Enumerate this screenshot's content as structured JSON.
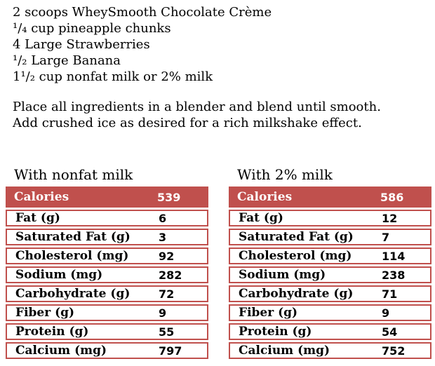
{
  "colors": {
    "accent": "#C0504D",
    "header_text": "#FFFFFF",
    "body_text": "#000000",
    "row_background": "#FFFFFF"
  },
  "ingredients": [
    "2 scoops WheySmooth Chocolate Crème",
    "¹/₄ cup pineapple chunks",
    "4 Large Strawberries",
    "¹/₂ Large Banana",
    "1¹/₂ cup nonfat milk or 2% milk"
  ],
  "instructions": [
    "Place all ingredients in a blender and blend until smooth.",
    "Add crushed ice as desired for a rich milkshake effect."
  ],
  "tables": [
    {
      "title": "With nonfat milk",
      "header": {
        "label": "Calories",
        "value": "539"
      },
      "rows": [
        {
          "label": "Fat (g)",
          "value": "6"
        },
        {
          "label": "Saturated Fat (g)",
          "value": "3"
        },
        {
          "label": "Cholesterol (mg)",
          "value": "92"
        },
        {
          "label": "Sodium (mg)",
          "value": "282"
        },
        {
          "label": "Carbohydrate (g)",
          "value": "72"
        },
        {
          "label": "Fiber (g)",
          "value": "9"
        },
        {
          "label": "Protein (g)",
          "value": "55"
        },
        {
          "label": "Calcium (mg)",
          "value": "797"
        }
      ]
    },
    {
      "title": "With 2% milk",
      "header": {
        "label": "Calories",
        "value": "586"
      },
      "rows": [
        {
          "label": "Fat (g)",
          "value": "12"
        },
        {
          "label": "Saturated Fat (g)",
          "value": "7"
        },
        {
          "label": "Cholesterol (mg)",
          "value": "114"
        },
        {
          "label": "Sodium (mg)",
          "value": "238"
        },
        {
          "label": "Carbohydrate (g)",
          "value": "71"
        },
        {
          "label": "Fiber (g)",
          "value": "9"
        },
        {
          "label": "Protein (g)",
          "value": "54"
        },
        {
          "label": "Calcium (mg)",
          "value": "752"
        }
      ]
    }
  ]
}
